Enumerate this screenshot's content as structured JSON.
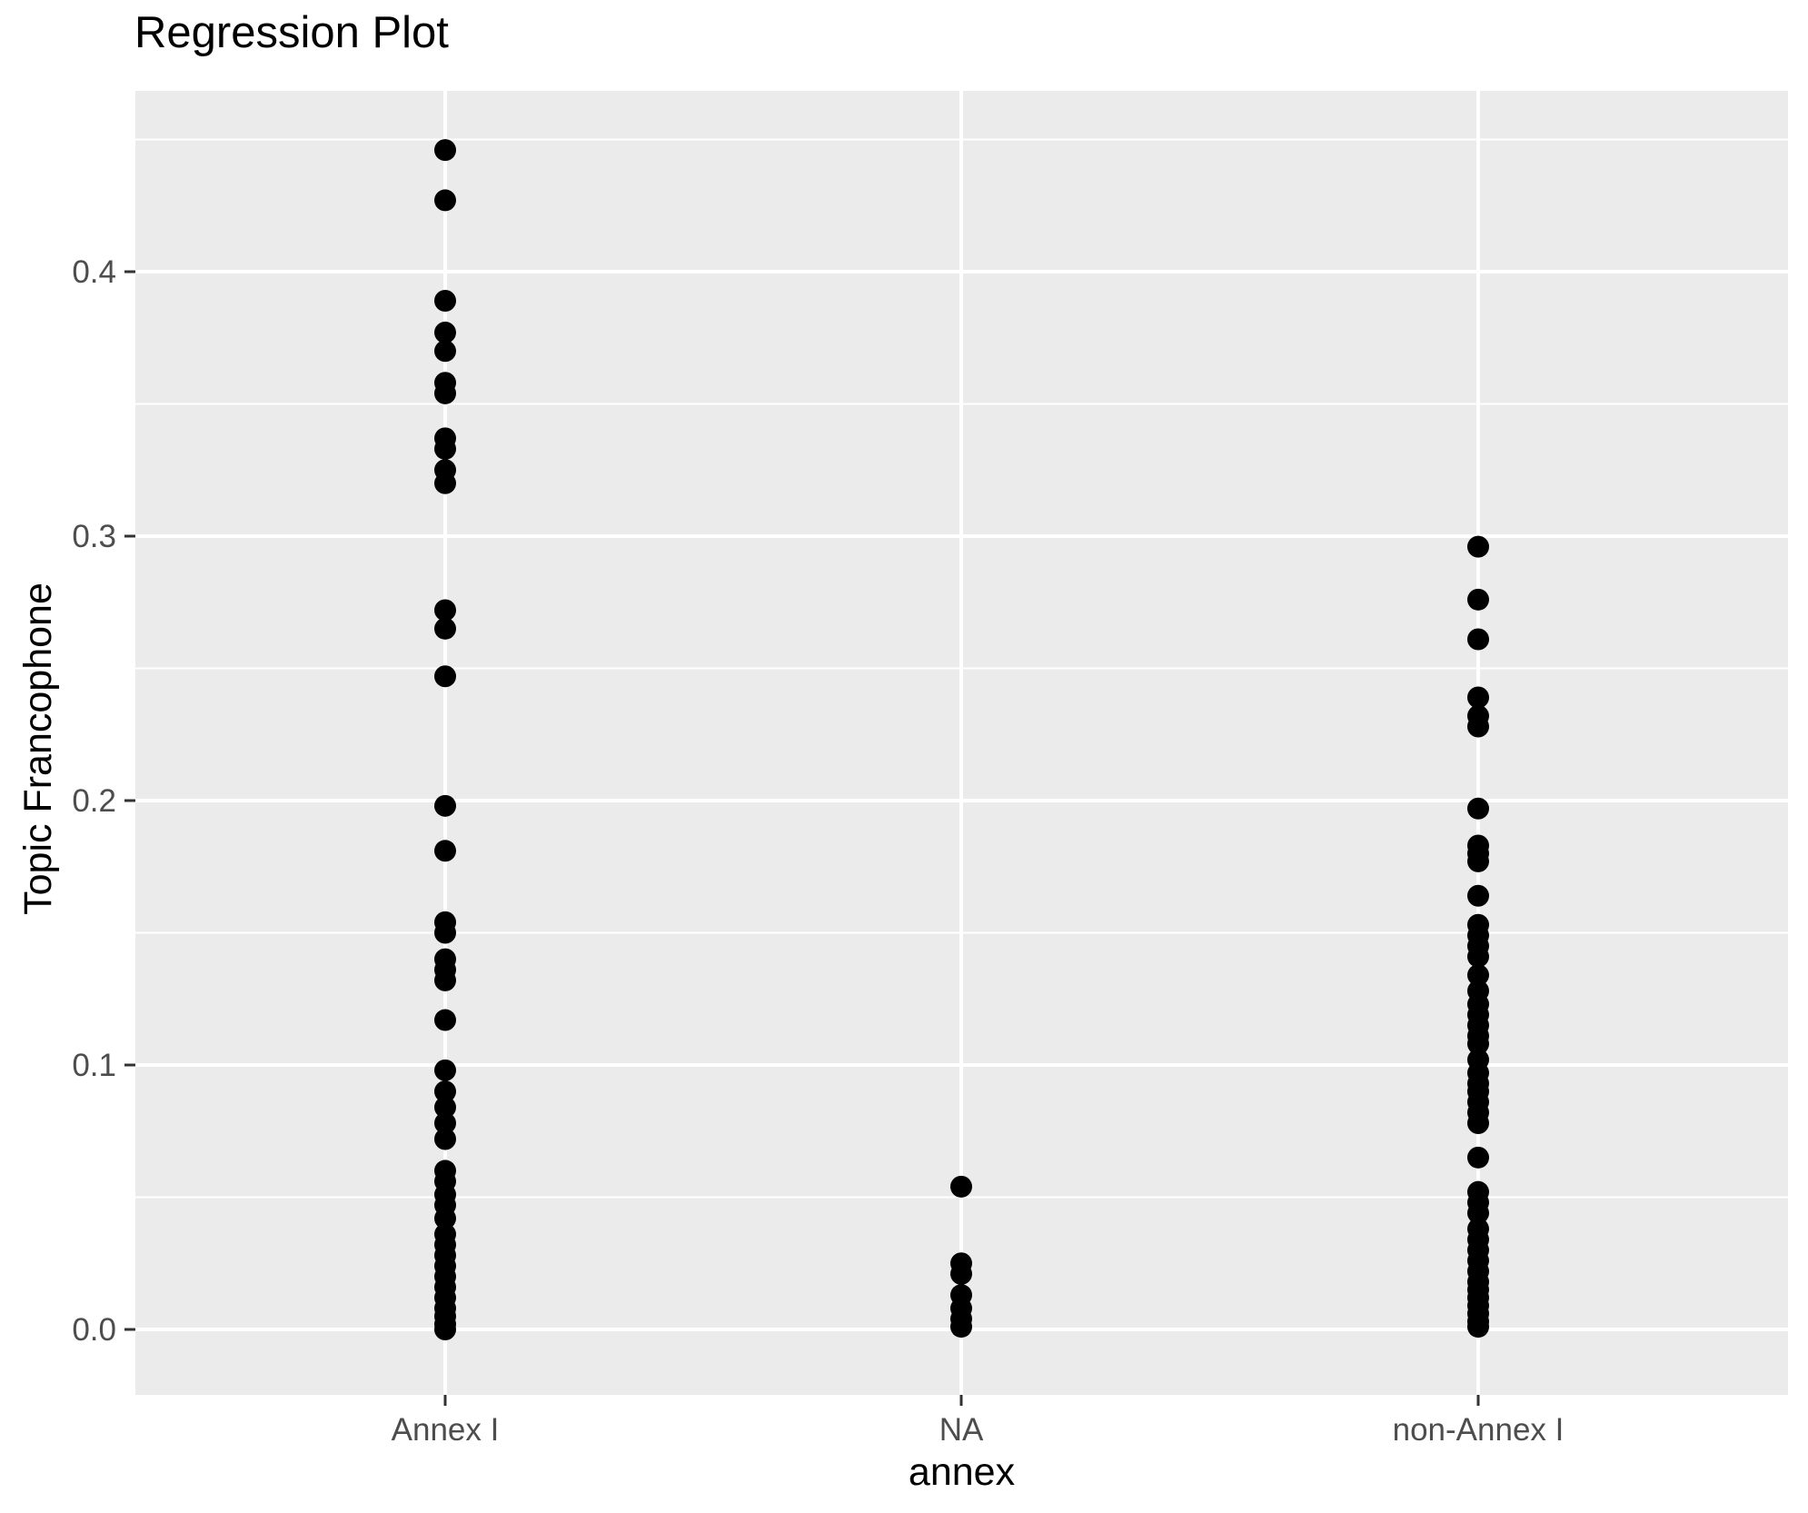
{
  "chart_data": {
    "type": "scatter",
    "title": "Regression Plot",
    "xlabel": "annex",
    "ylabel": "Topic Francophone",
    "categories": [
      "Annex I",
      "NA",
      "non-Annex I"
    ],
    "series": [
      {
        "name": "Annex I",
        "values": [
          0.446,
          0.427,
          0.389,
          0.377,
          0.37,
          0.358,
          0.354,
          0.337,
          0.333,
          0.325,
          0.32,
          0.272,
          0.265,
          0.247,
          0.198,
          0.181,
          0.154,
          0.15,
          0.14,
          0.136,
          0.132,
          0.117,
          0.098,
          0.09,
          0.084,
          0.078,
          0.072,
          0.06,
          0.056,
          0.051,
          0.047,
          0.042,
          0.036,
          0.032,
          0.028,
          0.024,
          0.02,
          0.016,
          0.012,
          0.008,
          0.005,
          0.002,
          0.0
        ]
      },
      {
        "name": "NA",
        "values": [
          0.054,
          0.025,
          0.021,
          0.013,
          0.008,
          0.004,
          0.001
        ]
      },
      {
        "name": "non-Annex I",
        "values": [
          0.296,
          0.276,
          0.261,
          0.239,
          0.232,
          0.228,
          0.197,
          0.183,
          0.18,
          0.177,
          0.164,
          0.153,
          0.149,
          0.145,
          0.141,
          0.134,
          0.128,
          0.123,
          0.119,
          0.115,
          0.111,
          0.108,
          0.102,
          0.097,
          0.093,
          0.09,
          0.086,
          0.082,
          0.078,
          0.065,
          0.052,
          0.048,
          0.044,
          0.038,
          0.034,
          0.03,
          0.026,
          0.022,
          0.018,
          0.015,
          0.012,
          0.009,
          0.006,
          0.003,
          0.001
        ]
      }
    ],
    "yticks": [
      0.0,
      0.1,
      0.2,
      0.3,
      0.4
    ],
    "ytick_labels": [
      "0.0",
      "0.1",
      "0.2",
      "0.3",
      "0.4"
    ],
    "ylim": [
      -0.025,
      0.468
    ],
    "grid": "horizontal major and minor white gridlines; vertical major gridline at each category",
    "legend": "none",
    "style": {
      "figure_background": "#FFFFFF",
      "panel_background": "#EBEBEB",
      "grid_color": "#FFFFFF",
      "point_color": "#000000",
      "tick_label_color": "#4D4D4D",
      "tick_mark_color": "#333333",
      "title_color": "#000000",
      "axis_title_color": "#000000"
    }
  }
}
